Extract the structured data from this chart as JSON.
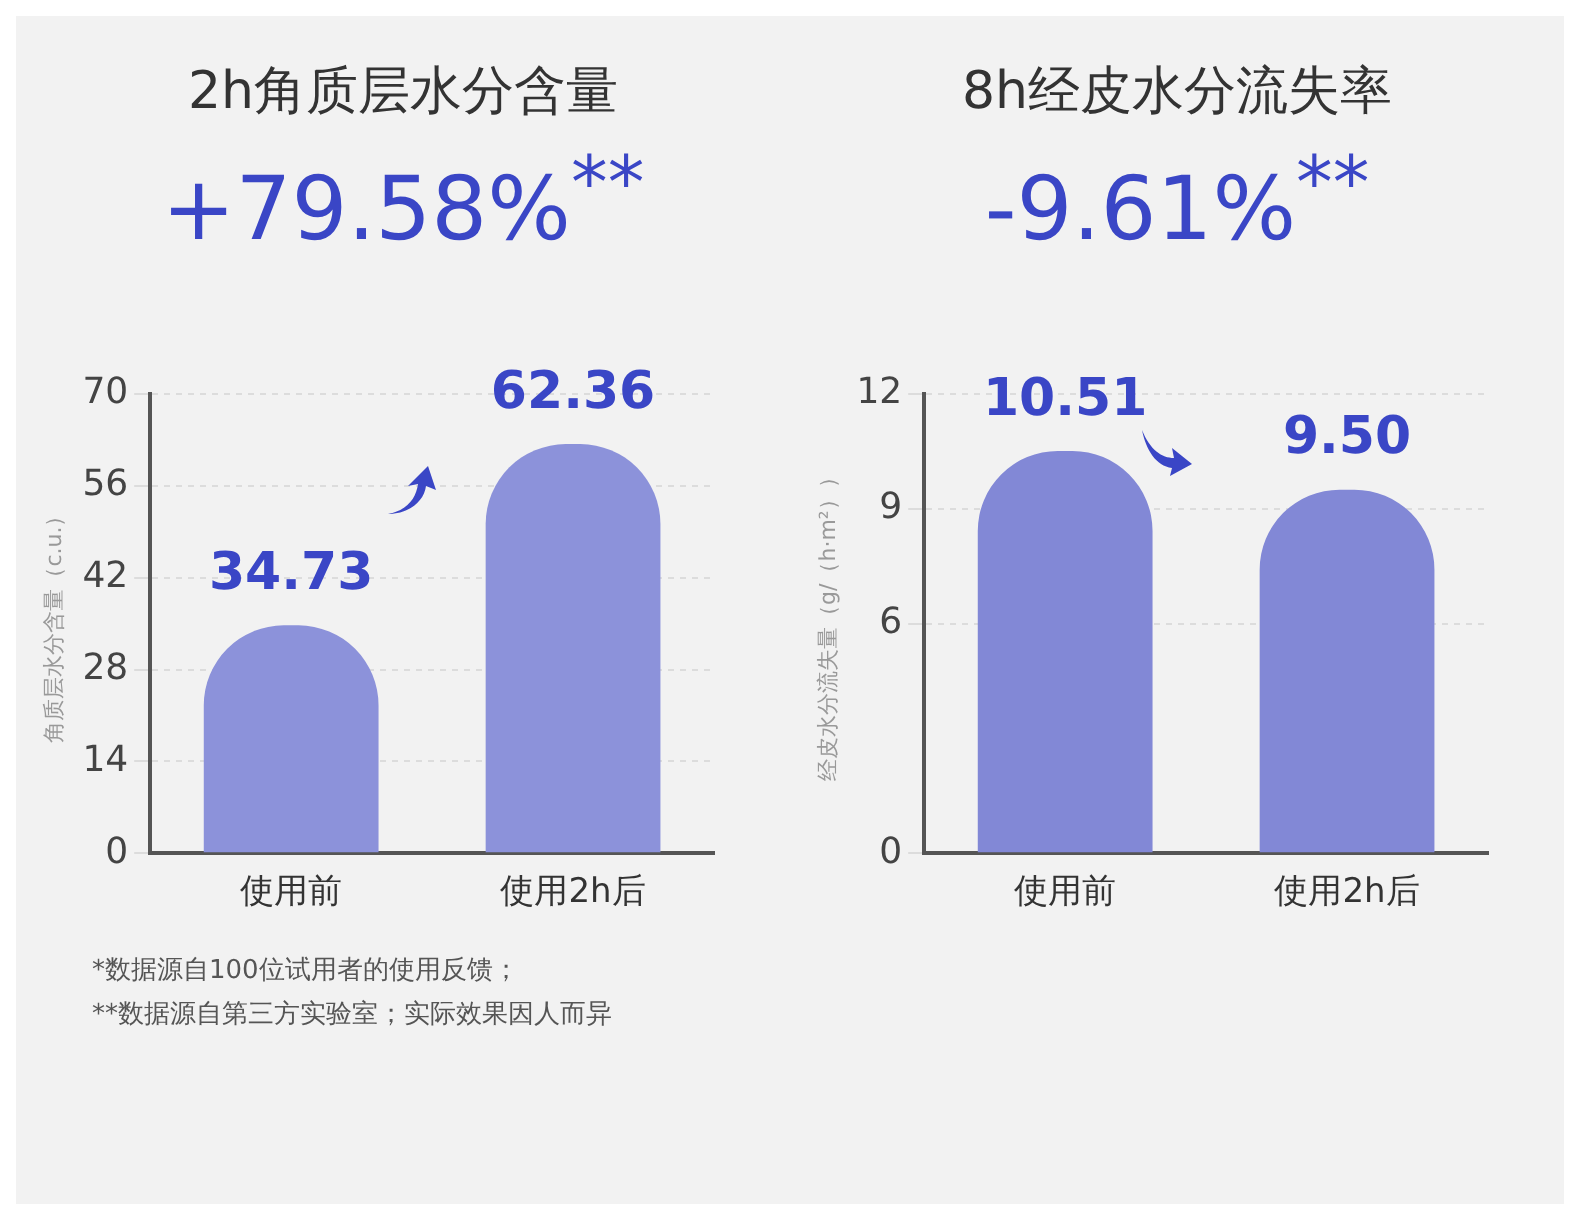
{
  "chart_data": [
    {
      "type": "bar",
      "title": "2h角质层水分含量",
      "subtitle": "+79.58%$^{**}$",
      "ylabel": "角质层水分含量（c.u.）",
      "categories": [
        "使用前",
        "使用2h后"
      ],
      "values": [
        34.73,
        62.36
      ],
      "color": "#8c92da",
      "ylim": [
        0,
        70
      ],
      "yticks": [
        0,
        14,
        28,
        42,
        56,
        70
      ],
      "grid": "y",
      "data_labels": true,
      "annotations": [
        "*数据源自100位试用者的使用反馈；",
        "**数据源自第三方实验室；实际效果因人而异"
      ]
    },
    {
      "type": "bar",
      "title": "8h经皮水分流失率",
      "subtitle": "-9.61%$^{**}$",
      "ylabel": "经皮水分流失量（g/（h·m²））",
      "categories": [
        "使用前",
        "使用2h后"
      ],
      "values": [
        10.51,
        9.5
      ],
      "value_labels": [
        "10.51",
        "9.50"
      ],
      "color": "#8288d6",
      "ylim": [
        0,
        12
      ],
      "yticks": [
        0,
        6,
        9,
        12
      ],
      "grid": "y"
    }
  ]
}
